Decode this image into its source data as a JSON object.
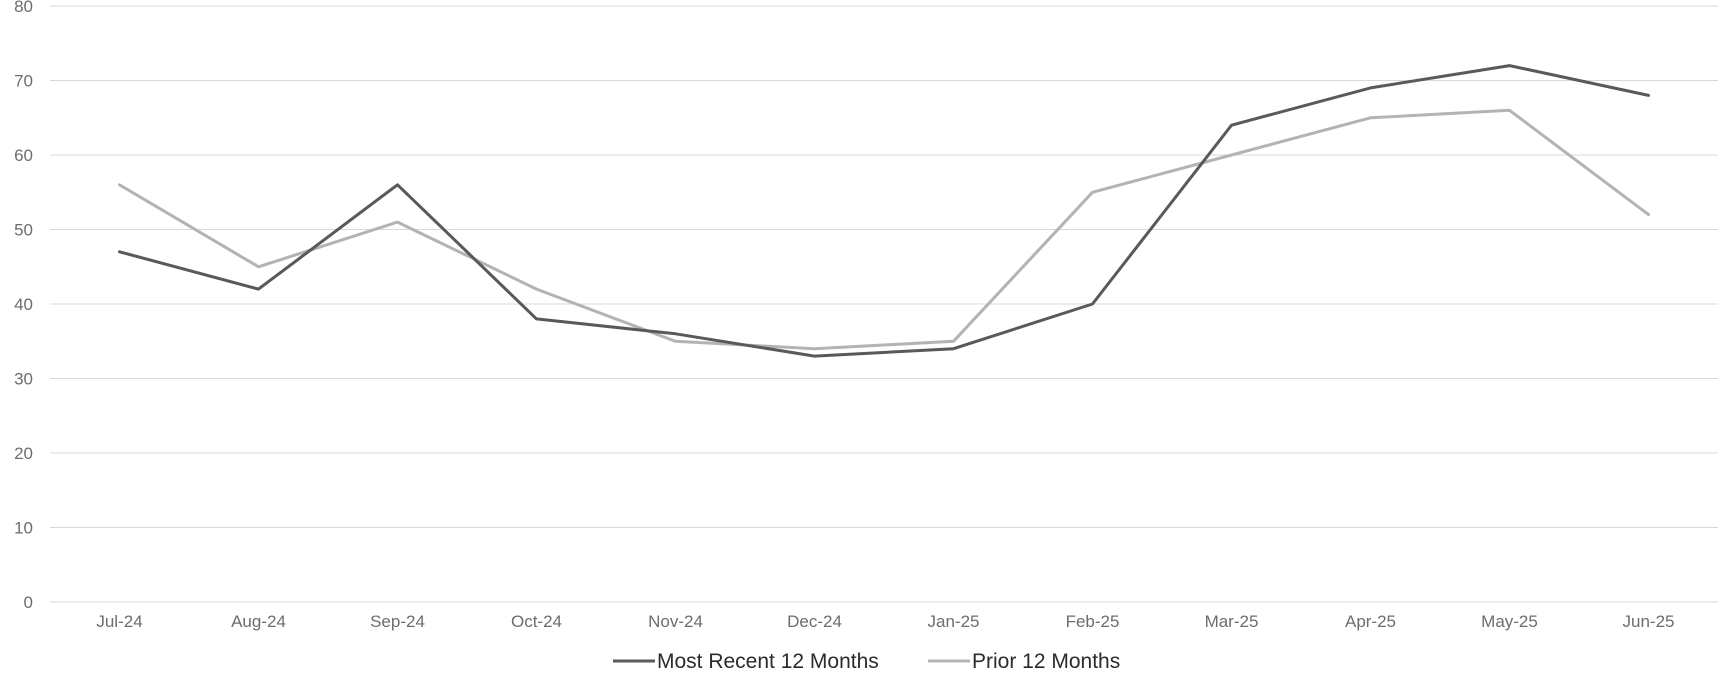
{
  "chart_data": {
    "type": "line",
    "categories": [
      "Jul-24",
      "Aug-24",
      "Sep-24",
      "Oct-24",
      "Nov-24",
      "Dec-24",
      "Jan-25",
      "Feb-25",
      "Mar-25",
      "Apr-25",
      "May-25",
      "Jun-25"
    ],
    "series": [
      {
        "name": "Most Recent 12 Months",
        "color": "#595959",
        "values": [
          47,
          42,
          56,
          38,
          36,
          33,
          34,
          40,
          64,
          69,
          72,
          68
        ]
      },
      {
        "name": "Prior 12 Months",
        "color": "#b3b3b3",
        "values": [
          56,
          45,
          51,
          42,
          35,
          34,
          35,
          55,
          60,
          65,
          66,
          52
        ]
      }
    ],
    "title": "",
    "xlabel": "",
    "ylabel": "",
    "ylim": [
      0,
      80
    ],
    "yticks": [
      "0",
      "10",
      "20",
      "30",
      "40",
      "50",
      "60",
      "70",
      "80"
    ],
    "grid": true,
    "legend_position": "bottom-center"
  }
}
